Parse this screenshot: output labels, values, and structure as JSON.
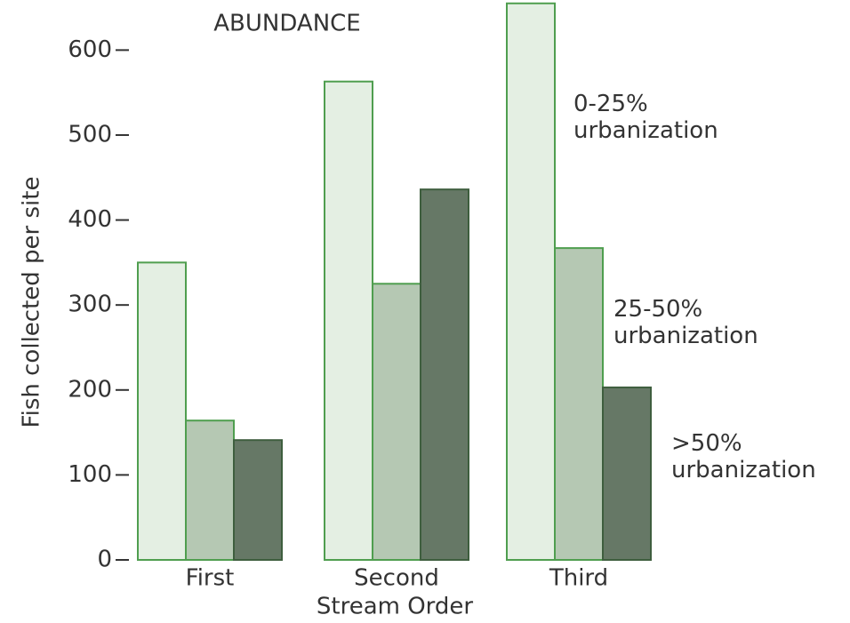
{
  "chart_data": {
    "type": "bar",
    "title": "ABUNDANCE",
    "x_label": "Stream Order",
    "y_label": "Fish collected per site",
    "categories": [
      "First",
      "Second",
      "Third"
    ],
    "series": [
      {
        "name": "0-25% urbanization",
        "color": "#e4efe3",
        "values": [
          350,
          563,
          655
        ]
      },
      {
        "name": "25-50% urbanization",
        "color": "#b5c8b3",
        "values": [
          164,
          325,
          367
        ]
      },
      {
        "name": ">50% urbanization",
        "color": "#667866",
        "values": [
          141,
          436,
          203
        ]
      }
    ],
    "ylim": [
      0,
      660
    ],
    "yticks": [
      0,
      100,
      200,
      300,
      400,
      500,
      600
    ]
  }
}
